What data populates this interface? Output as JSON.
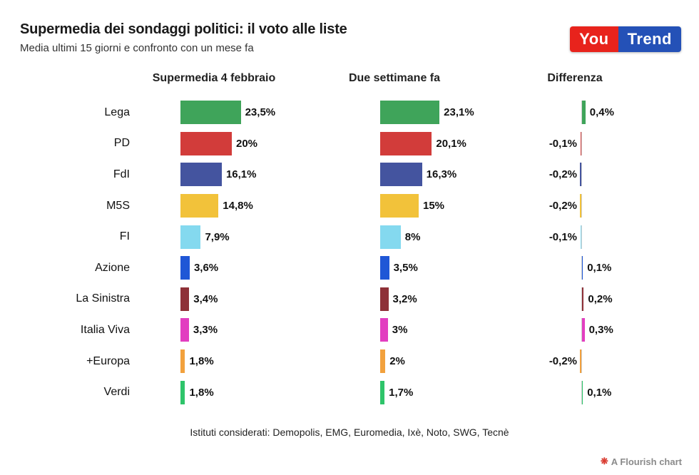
{
  "header": {
    "title": "Supermedia dei sondaggi politici: il voto alle liste",
    "subtitle": "Media ultimi 15 giorni e confronto con un mese fa",
    "logo": {
      "part1": "You",
      "part2": "Trend",
      "part1_bg": "#e8231c",
      "part2_bg": "#2451b7"
    }
  },
  "columns": [
    "Supermedia 4 febbraio",
    "Due settimane fa",
    "Differenza"
  ],
  "chart_data": {
    "type": "bar",
    "orientation": "horizontal",
    "title": "Supermedia dei sondaggi politici: il voto alle liste",
    "subtitle": "Media ultimi 15 giorni e confronto con un mese fa",
    "categories": [
      "Lega",
      "PD",
      "FdI",
      "M5S",
      "FI",
      "Azione",
      "La Sinistra",
      "Italia Viva",
      "+Europa",
      "Verdi"
    ],
    "series": [
      {
        "name": "Supermedia 4 febbraio",
        "values": [
          23.5,
          20,
          16.1,
          14.8,
          7.9,
          3.6,
          3.4,
          3.3,
          1.8,
          1.8
        ]
      },
      {
        "name": "Due settimane fa",
        "values": [
          23.1,
          20.1,
          16.3,
          15,
          8,
          3.5,
          3.2,
          3,
          2,
          1.7
        ]
      },
      {
        "name": "Differenza",
        "values": [
          0.4,
          -0.1,
          -0.2,
          -0.2,
          -0.1,
          0.1,
          0.2,
          0.3,
          -0.2,
          0.1
        ]
      }
    ],
    "labels": {
      "supermedia": [
        "23,5%",
        "20%",
        "16,1%",
        "14,8%",
        "7,9%",
        "3,6%",
        "3,4%",
        "3,3%",
        "1,8%",
        "1,8%"
      ],
      "due_settimane": [
        "23,1%",
        "20,1%",
        "16,3%",
        "15%",
        "8%",
        "3,5%",
        "3,2%",
        "3%",
        "2%",
        "1,7%"
      ],
      "differenza": [
        "0,4%",
        "-0,1%",
        "-0,2%",
        "-0,2%",
        "-0,1%",
        "0,1%",
        "0,2%",
        "0,3%",
        "-0,2%",
        "0,1%"
      ]
    },
    "colors": [
      "#3fa45a",
      "#d23c3a",
      "#44549f",
      "#f2c23a",
      "#84d9ef",
      "#1f57d6",
      "#8e3038",
      "#e23ec0",
      "#f2a13d",
      "#2ec46a"
    ],
    "grid": false,
    "legend_position": "none",
    "value_labels": true
  },
  "footer": {
    "sources": "Istituti considerati: Demopolis, EMG, Euromedia, Ixè, Noto, SWG, Tecnè",
    "credit": "A Flourish chart"
  }
}
